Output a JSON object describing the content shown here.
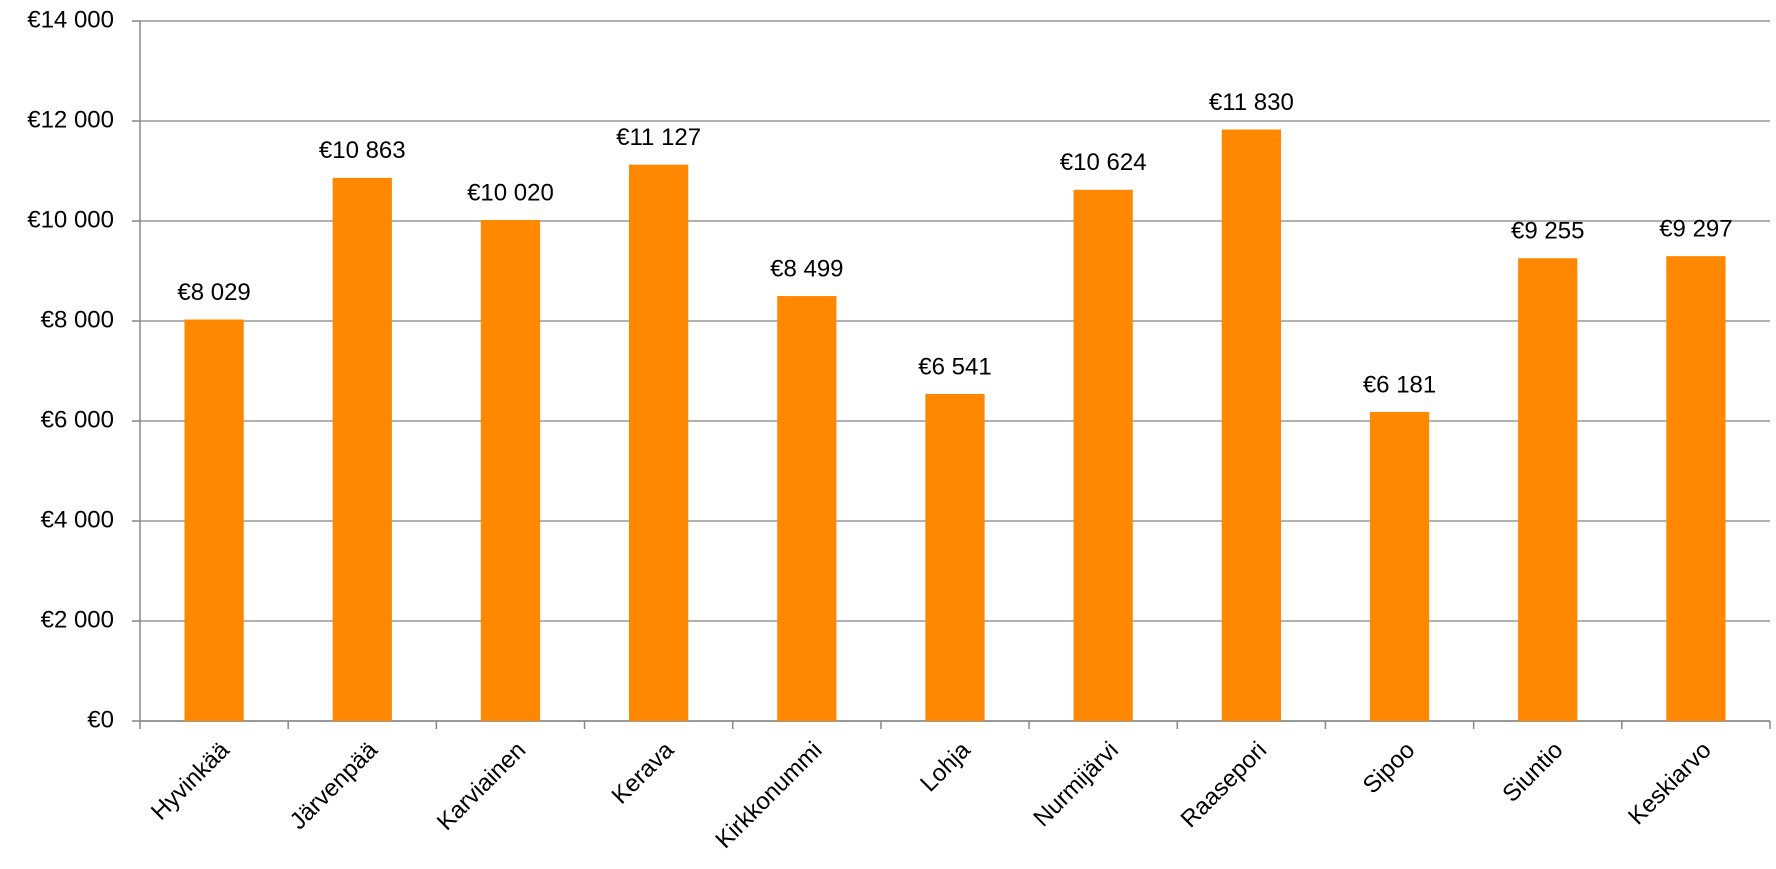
{
  "chart_data": {
    "type": "bar",
    "categories": [
      "Hyvinkää",
      "Järvenpää",
      "Karviainen",
      "Kerava",
      "Kirkkonummi",
      "Lohja",
      "Nurmijärvi",
      "Raasepori",
      "Sipoo",
      "Siuntio",
      "Keskiarvo"
    ],
    "values": [
      8029,
      10863,
      10020,
      11127,
      8499,
      6541,
      10624,
      11830,
      6181,
      9255,
      9297
    ],
    "value_labels": [
      "€8 029",
      "€10 863",
      "€10 020",
      "€11 127",
      "€8 499",
      "€6 541",
      "€10 624",
      "€11 830",
      "€6 181",
      "€9 255",
      "€9 297"
    ],
    "color": "#ff8800",
    "ylim": [
      0,
      14000
    ],
    "yticks": [
      {
        "value": 0,
        "label": "€0"
      },
      {
        "value": 2000,
        "label": "€2 000"
      },
      {
        "value": 4000,
        "label": "€4 000"
      },
      {
        "value": 6000,
        "label": "€6 000"
      },
      {
        "value": 8000,
        "label": "€8 000"
      },
      {
        "value": 10000,
        "label": "€10 000"
      },
      {
        "value": 12000,
        "label": "€12 000"
      },
      {
        "value": 14000,
        "label": "€14 000"
      }
    ],
    "grid": true
  }
}
